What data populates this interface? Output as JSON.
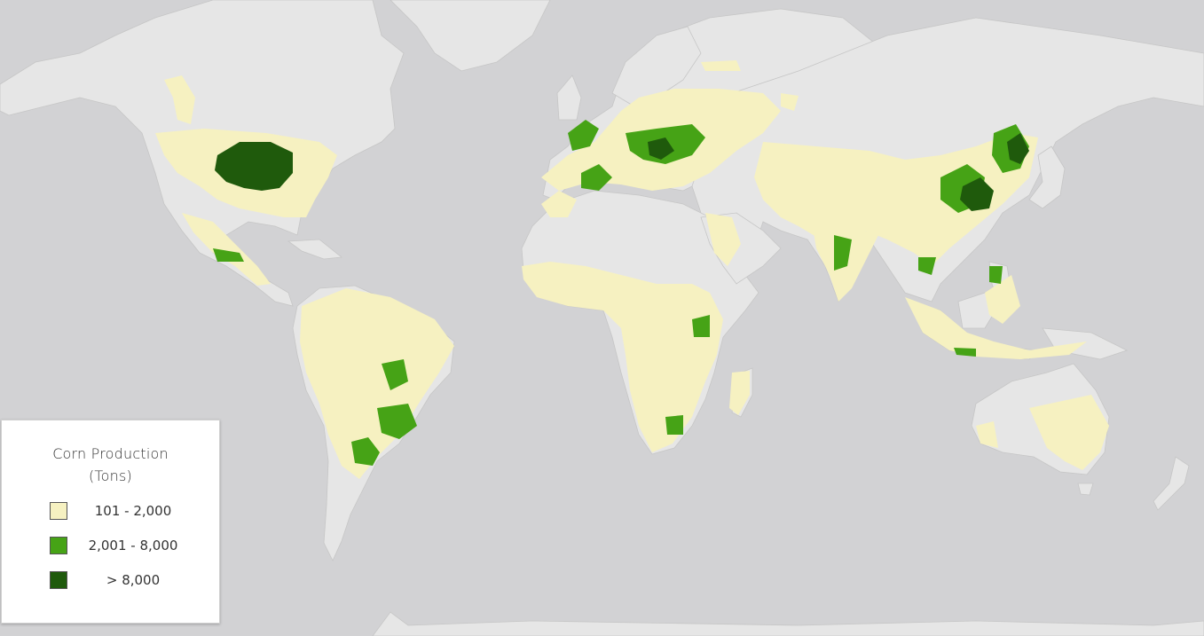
{
  "legend": {
    "title_line1": "Corn Production",
    "title_line2": "(Tons)",
    "classes": [
      {
        "label": "101 - 2,000",
        "color": "#f6f1c1"
      },
      {
        "label": "2,001 - 8,000",
        "color": "#46a316"
      },
      {
        "label": "> 8,000",
        "color": "#1f5a0c"
      }
    ]
  },
  "colors": {
    "ocean": "#d2d2d4",
    "land": "#e6e6e6"
  }
}
